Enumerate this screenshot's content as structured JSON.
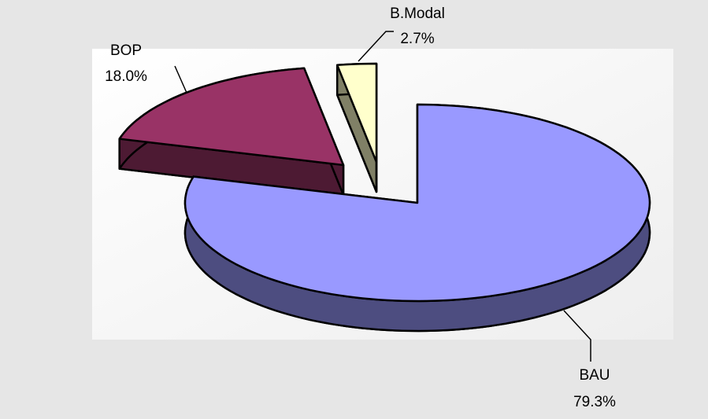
{
  "chart_data": {
    "type": "pie",
    "categories": [
      "BAU",
      "BOP",
      "B.Modal"
    ],
    "values": [
      79.3,
      18.0,
      2.7
    ],
    "value_labels": [
      "79.3%",
      "18.0%",
      "2.7%"
    ],
    "colors": [
      "#9999ff",
      "#993366",
      "#ffffcc"
    ]
  }
}
